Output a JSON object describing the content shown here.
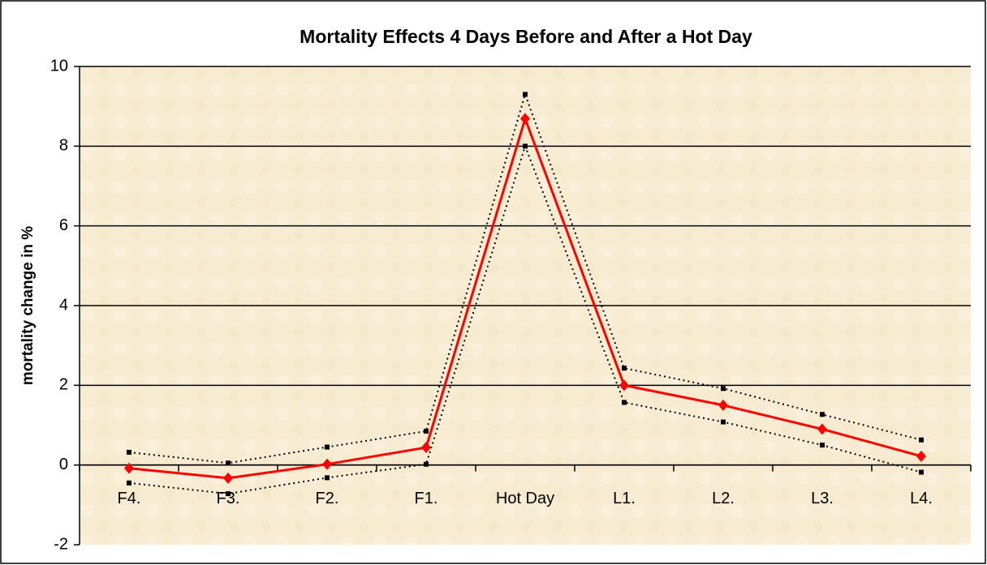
{
  "chart_data": {
    "type": "line",
    "title": "Mortality Effects 4 Days Before and After a Hot Day",
    "y_label": "mortality change in %",
    "categories": [
      "F4.",
      "F3.",
      "F2.",
      "F1.",
      "Hot Day",
      "L1.",
      "L2.",
      "L3.",
      "L4."
    ],
    "series": [
      {
        "color": "#000000",
        "style": "dotted",
        "marker": "square",
        "values": [
          0.32,
          0.05,
          0.45,
          0.85,
          9.3,
          2.43,
          1.92,
          1.27,
          0.63
        ]
      },
      {
        "color": "#000000",
        "style": "dotted",
        "marker": "square",
        "values": [
          -0.45,
          -0.72,
          -0.32,
          0.02,
          8.0,
          1.57,
          1.08,
          0.5,
          -0.18
        ]
      },
      {
        "color": "#ff0000",
        "style": "solid",
        "marker": "diamond",
        "values": [
          -0.08,
          -0.33,
          0.02,
          0.44,
          8.69,
          2.0,
          1.5,
          0.9,
          0.22
        ]
      }
    ],
    "ylim": [
      -2,
      10
    ],
    "yticks": [
      -2,
      0,
      2,
      4,
      6,
      8,
      10
    ],
    "grid": true
  }
}
